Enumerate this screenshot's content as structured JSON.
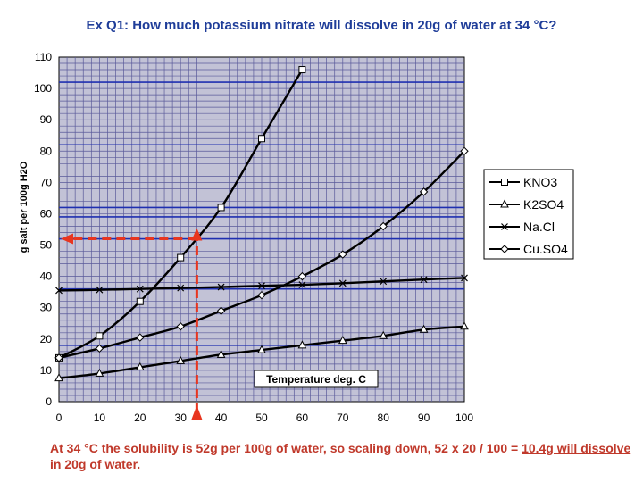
{
  "question": "Ex Q1: How much potassium nitrate will dissolve in 20g of water at 34 °C?",
  "answer": {
    "before": "At 34 °C the solubility is 52g per 100g of water, so scaling down, 52 x 20 / 100 = ",
    "underlined": "10.4g will dissolve in 20g of water."
  },
  "colors": {
    "question": "#1f3d99",
    "answer": "#c0392b",
    "plot_background": "#c2c2d6",
    "minor_grid": "#5a5a9a",
    "highlight_grid": "#1f2fb0",
    "series": "#000000",
    "guide": "#e8351f"
  },
  "chart_data": {
    "type": "line",
    "title": "",
    "xlabel": "Temperature deg. C",
    "ylabel": "g salt per 100g H2O",
    "xlim": [
      0,
      100
    ],
    "ylim": [
      0,
      110
    ],
    "xticks": [
      0,
      10,
      20,
      30,
      40,
      50,
      60,
      70,
      80,
      90,
      100
    ],
    "yticks": [
      0,
      10,
      20,
      30,
      40,
      50,
      60,
      70,
      80,
      90,
      100,
      110
    ],
    "grid": true,
    "highlight_y": [
      18,
      36,
      52,
      59,
      62,
      82,
      102
    ],
    "legend_position": "right",
    "series": [
      {
        "name": "KNO3",
        "marker": "square",
        "x": [
          0,
          10,
          20,
          30,
          40,
          50,
          60
        ],
        "y": [
          14,
          21,
          32,
          46,
          62,
          84,
          106
        ]
      },
      {
        "name": "K2SO4",
        "marker": "triangle",
        "x": [
          0,
          10,
          20,
          30,
          40,
          50,
          60,
          70,
          80,
          90,
          100
        ],
        "y": [
          7.5,
          9,
          11,
          13,
          15,
          16.5,
          18,
          19.5,
          21,
          23,
          24
        ]
      },
      {
        "name": "Na.Cl",
        "marker": "x",
        "x": [
          0,
          10,
          20,
          30,
          40,
          50,
          60,
          70,
          80,
          90,
          100
        ],
        "y": [
          35.5,
          35.7,
          36,
          36.3,
          36.6,
          37,
          37.3,
          37.8,
          38.4,
          39,
          39.5
        ]
      },
      {
        "name": "Cu.SO4",
        "marker": "diamond",
        "x": [
          0,
          10,
          20,
          30,
          40,
          50,
          60,
          70,
          80,
          90,
          100
        ],
        "y": [
          14,
          17,
          20.5,
          24,
          29,
          34,
          40,
          47,
          56,
          67,
          80
        ]
      }
    ],
    "annotation": {
      "x": 34,
      "y": 52
    }
  }
}
